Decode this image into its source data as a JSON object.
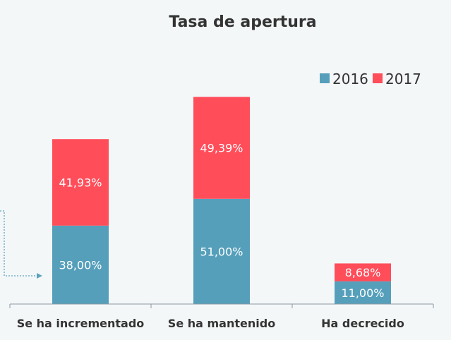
{
  "chart_data": {
    "type": "bar",
    "stacked": true,
    "title": "Tasa de apertura",
    "categories": [
      "Se ha incrementado",
      "Se ha mantenido",
      "Ha decrecido"
    ],
    "series": [
      {
        "name": "2016",
        "color": "#559fbb",
        "values": [
          38.0,
          51.0,
          11.0
        ],
        "labels": [
          "38,00%",
          "51,00%",
          "11,00%"
        ]
      },
      {
        "name": "2017",
        "color": "#ff4d5a",
        "values": [
          41.93,
          49.39,
          8.68
        ],
        "labels": [
          "41,93%",
          "49,39%",
          "8,68%"
        ]
      }
    ],
    "legend_position": "top-right",
    "grid": false,
    "ylim": [
      0,
      120
    ]
  }
}
